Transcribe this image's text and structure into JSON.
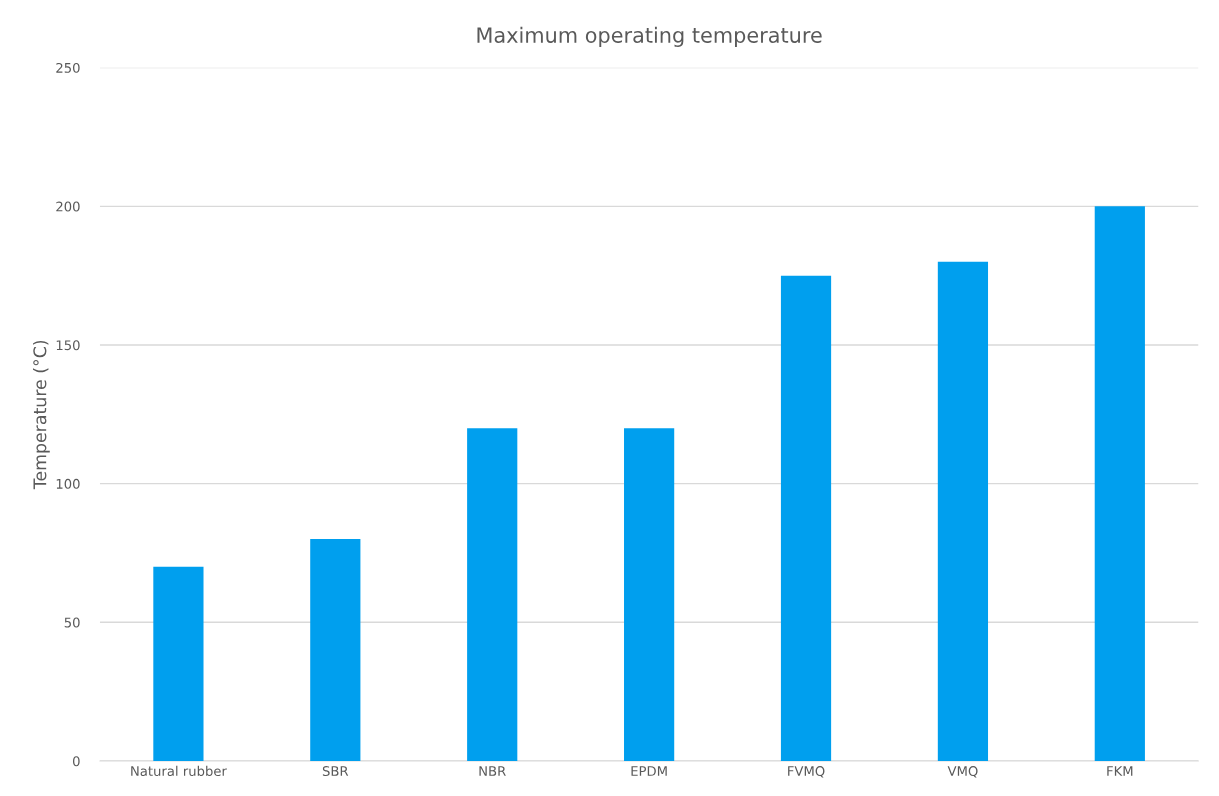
{
  "chart_data": {
    "type": "bar",
    "title": "Maximum operating temperature",
    "ylabel": "Temperature (°C)",
    "categories": [
      "Natural rubber",
      "SBR",
      "NBR",
      "EPDM",
      "FVMQ",
      "VMQ",
      "FKM"
    ],
    "values": [
      70,
      80,
      120,
      120,
      175,
      180,
      200
    ],
    "color": "#009fee",
    "ylim": [
      0,
      250
    ],
    "yticks": [
      0,
      50,
      100,
      150,
      200,
      250
    ],
    "grid": "y",
    "legend": false
  }
}
